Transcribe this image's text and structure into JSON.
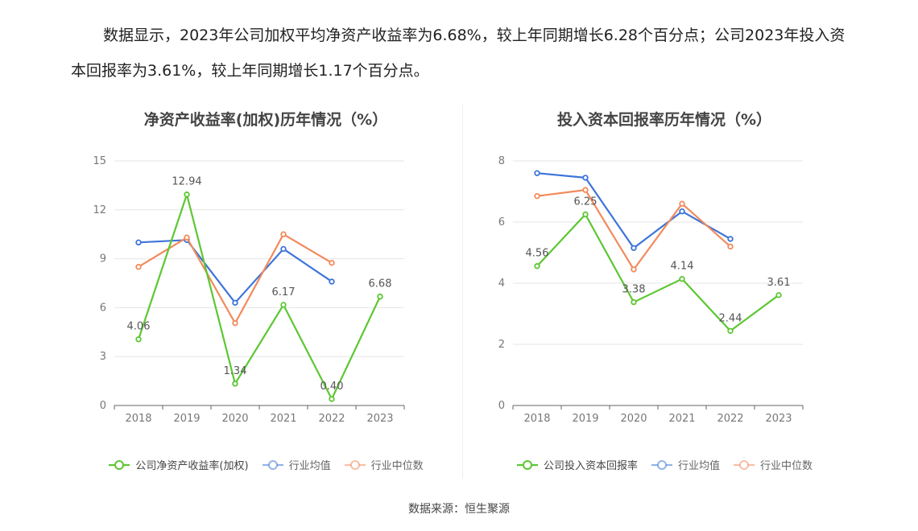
{
  "intro": {
    "text": "数据显示，2023年公司加权平均净资产收益率为6.68%，较上年同期增长6.28个百分点；公司2023年投入资本回报率为3.61%，较上年同期增长1.17个百分点。"
  },
  "source": "数据来源：恒生聚源",
  "chart_data": [
    {
      "type": "line",
      "title": "净资产收益率(加权)历年情况（%）",
      "categories": [
        "2018",
        "2019",
        "2020",
        "2021",
        "2022",
        "2023"
      ],
      "ylim": [
        0,
        15
      ],
      "yticks": [
        0,
        3,
        6,
        9,
        12,
        15
      ],
      "grid": true,
      "legend": "bottom",
      "series": [
        {
          "name": "公司净资产收益率(加权)",
          "color": "#5cc732",
          "values": [
            4.06,
            12.94,
            1.34,
            6.17,
            0.4,
            6.68
          ],
          "labels": [
            "4.06",
            "12.94",
            "1.34",
            "6.17",
            "0.40",
            "6.68"
          ]
        },
        {
          "name": "行业均值",
          "color": "#3d74d9",
          "values": [
            10.0,
            10.15,
            6.3,
            9.6,
            7.6,
            null
          ]
        },
        {
          "name": "行业中位数",
          "color": "#f28a5c",
          "values": [
            8.5,
            10.3,
            5.05,
            10.5,
            8.75,
            null
          ]
        }
      ]
    },
    {
      "type": "line",
      "title": "投入资本回报率历年情况（%）",
      "categories": [
        "2018",
        "2019",
        "2020",
        "2021",
        "2022",
        "2023"
      ],
      "ylim": [
        0,
        8
      ],
      "yticks": [
        0,
        2,
        4,
        6,
        8
      ],
      "grid": true,
      "legend": "bottom",
      "series": [
        {
          "name": "公司投入资本回报率",
          "color": "#5cc732",
          "values": [
            4.56,
            6.25,
            3.38,
            4.14,
            2.44,
            3.61
          ],
          "labels": [
            "4.56",
            "6.25",
            "3.38",
            "4.14",
            "2.44",
            "3.61"
          ]
        },
        {
          "name": "行业均值",
          "color": "#3d74d9",
          "values": [
            7.6,
            7.45,
            5.15,
            6.35,
            5.45,
            null
          ]
        },
        {
          "name": "行业中位数",
          "color": "#f28a5c",
          "values": [
            6.85,
            7.05,
            4.45,
            6.6,
            5.2,
            null
          ]
        }
      ]
    }
  ]
}
